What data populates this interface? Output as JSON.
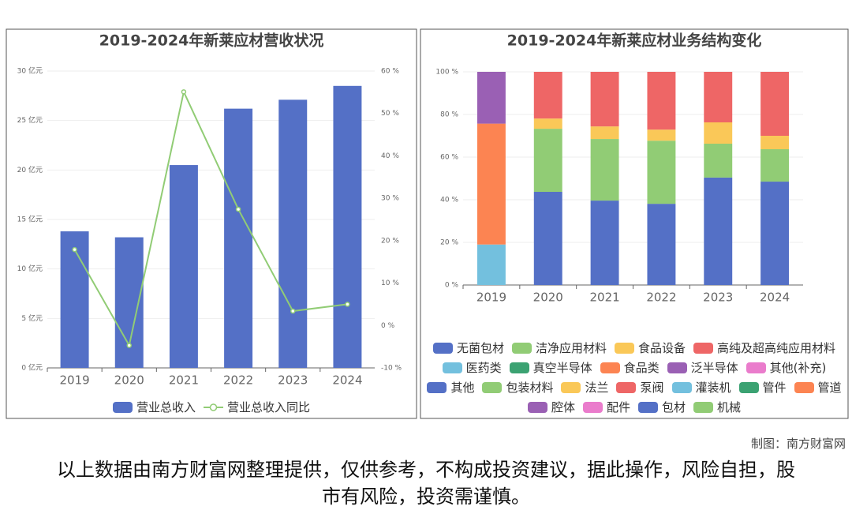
{
  "chart_data": [
    {
      "type": "bar_line",
      "title": "2019-2024年新莱应材营收状况",
      "categories": [
        "2019",
        "2020",
        "2021",
        "2022",
        "2023",
        "2024"
      ],
      "series": [
        {
          "name": "营业总收入",
          "color": "#5470c6",
          "type": "bar",
          "values": [
            13.8,
            13.2,
            20.5,
            26.2,
            27.1,
            28.5
          ]
        },
        {
          "name": "营业总收入同比",
          "color": "#91cc75",
          "type": "line",
          "axis": "y2",
          "values": [
            17.9,
            -4.7,
            55.1,
            27.4,
            3.4,
            5.0
          ]
        }
      ],
      "ylim": [
        0,
        30
      ],
      "yticks": [
        {
          "value": 0,
          "label": "0 亿元"
        },
        {
          "value": 5,
          "label": "5 亿元"
        },
        {
          "value": 10,
          "label": "10 亿元"
        },
        {
          "value": 15,
          "label": "15 亿元"
        },
        {
          "value": 20,
          "label": "20 亿元"
        },
        {
          "value": 25,
          "label": "25 亿元"
        },
        {
          "value": 30,
          "label": "30 亿元"
        }
      ],
      "y2lim": [
        -10,
        60
      ],
      "y2ticks": [
        {
          "value": -10,
          "label": "-10 %"
        },
        {
          "value": 0,
          "label": "0 %"
        },
        {
          "value": 10,
          "label": "10 %"
        },
        {
          "value": 20,
          "label": "20 %"
        },
        {
          "value": 30,
          "label": "30 %"
        },
        {
          "value": 40,
          "label": "40 %"
        },
        {
          "value": 50,
          "label": "50 %"
        },
        {
          "value": 60,
          "label": "60 %"
        }
      ],
      "grid": true
    },
    {
      "type": "stacked_bar",
      "title": "2019-2024年新莱应材业务结构变化",
      "categories": [
        "2019",
        "2020",
        "2021",
        "2022",
        "2023",
        "2024"
      ],
      "series": [
        {
          "name": "无菌包材",
          "color": "#5470c6",
          "values": [
            null,
            43.7,
            39.6,
            38.1,
            50.4,
            48.5
          ]
        },
        {
          "name": "洁净应用材料",
          "color": "#91cc75",
          "values": [
            null,
            29.6,
            28.9,
            29.6,
            15.9,
            15.2
          ]
        },
        {
          "name": "食品设备",
          "color": "#fac858",
          "values": [
            null,
            4.8,
            5.9,
            5.2,
            10.0,
            6.3
          ]
        },
        {
          "name": "高纯及超高纯应用材料",
          "color": "#ee6666",
          "values": [
            null,
            21.9,
            25.6,
            27.1,
            23.7,
            30.0
          ]
        },
        {
          "name": "医药类",
          "color": "#73c0de",
          "values": [
            19.0,
            null,
            null,
            null,
            null,
            null
          ]
        },
        {
          "name": "真空半导体",
          "color": "#3ba272",
          "values": [
            null,
            null,
            null,
            null,
            null,
            null
          ]
        },
        {
          "name": "食品类",
          "color": "#fc8452",
          "values": [
            56.7,
            null,
            null,
            null,
            null,
            null
          ]
        },
        {
          "name": "泛半导体",
          "color": "#9a60b4",
          "values": [
            24.3,
            null,
            null,
            null,
            null,
            null
          ]
        },
        {
          "name": "其他(补充)",
          "color": "#ea7ccc",
          "values": [
            null,
            null,
            null,
            null,
            null,
            null
          ]
        },
        {
          "name": "其他",
          "color": "#5470c6",
          "values": [
            null,
            null,
            null,
            null,
            null,
            null
          ]
        },
        {
          "name": "包装材料",
          "color": "#91cc75",
          "values": [
            null,
            null,
            null,
            null,
            null,
            null
          ]
        },
        {
          "name": "法兰",
          "color": "#fac858",
          "values": [
            null,
            null,
            null,
            null,
            null,
            null
          ]
        },
        {
          "name": "泵阀",
          "color": "#ee6666",
          "values": [
            null,
            null,
            null,
            null,
            null,
            null
          ]
        },
        {
          "name": "灌装机",
          "color": "#73c0de",
          "values": [
            null,
            null,
            null,
            null,
            null,
            null
          ]
        },
        {
          "name": "管件",
          "color": "#3ba272",
          "values": [
            null,
            null,
            null,
            null,
            null,
            null
          ]
        },
        {
          "name": "管道",
          "color": "#fc8452",
          "values": [
            null,
            null,
            null,
            null,
            null,
            null
          ]
        },
        {
          "name": "腔体",
          "color": "#9a60b4",
          "values": [
            null,
            null,
            null,
            null,
            null,
            null
          ]
        },
        {
          "name": "配件",
          "color": "#ea7ccc",
          "values": [
            null,
            null,
            null,
            null,
            null,
            null
          ]
        },
        {
          "name": "包材",
          "color": "#5470c6",
          "values": [
            null,
            null,
            null,
            null,
            null,
            null
          ]
        },
        {
          "name": "机械",
          "color": "#91cc75",
          "values": [
            null,
            null,
            null,
            null,
            null,
            null
          ]
        }
      ],
      "ylim": [
        0,
        100
      ],
      "yticks": [
        {
          "value": 0,
          "label": "0 %"
        },
        {
          "value": 20,
          "label": "20 %"
        },
        {
          "value": 40,
          "label": "40 %"
        },
        {
          "value": 60,
          "label": "60 %"
        },
        {
          "value": 80,
          "label": "80 %"
        },
        {
          "value": 100,
          "label": "100 %"
        }
      ],
      "grid": true
    }
  ],
  "footer": {
    "credit": "制图：南方财富网",
    "disclaimer": "以上数据由南方财富网整理提供，仅供参考，不构成投资建议，据此操作，风险自担，股市有风险，投资需谨慎。"
  }
}
